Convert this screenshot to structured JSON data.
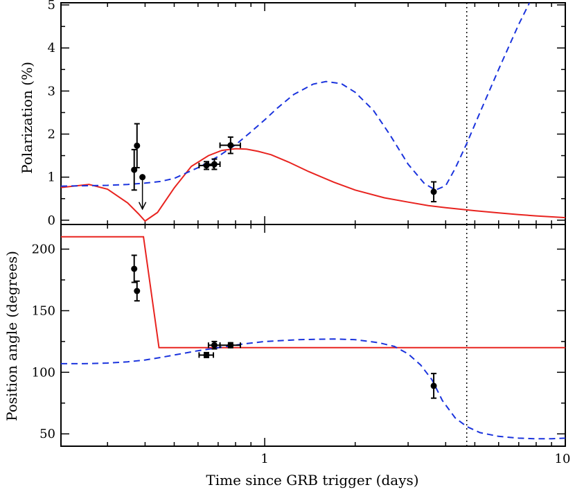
{
  "chart_data": [
    {
      "type": "line",
      "panel": "top",
      "ylabel": "Polarization (%)",
      "xscale": "log",
      "xlim": [
        0.21,
        10
      ],
      "ylim": [
        -0.1,
        5.05
      ],
      "xticks": [
        1,
        10
      ],
      "xtick_labels": [
        "1",
        "10"
      ],
      "yticks": [
        0,
        1,
        2,
        3,
        4,
        5
      ],
      "ytick_labels": [
        "0",
        "1",
        "2",
        "3",
        "4",
        "5"
      ],
      "vline_x": 4.7,
      "series": [
        {
          "style": "solid",
          "color": "#e8231f",
          "x": [
            0.21,
            0.26,
            0.3,
            0.35,
            0.38,
            0.4,
            0.44,
            0.5,
            0.57,
            0.65,
            0.72,
            0.8,
            0.87,
            0.95,
            1.05,
            1.2,
            1.4,
            1.7,
            2.0,
            2.5,
            3.0,
            3.5,
            4.0,
            5.0,
            6.0,
            7.0,
            8.0,
            10.0
          ],
          "y": [
            0.76,
            0.83,
            0.72,
            0.4,
            0.15,
            -0.02,
            0.18,
            0.75,
            1.25,
            1.5,
            1.62,
            1.66,
            1.65,
            1.6,
            1.52,
            1.35,
            1.13,
            0.88,
            0.7,
            0.52,
            0.42,
            0.34,
            0.29,
            0.22,
            0.17,
            0.13,
            0.1,
            0.06
          ]
        },
        {
          "style": "dashed",
          "color": "#1a33dd",
          "x": [
            0.21,
            0.25,
            0.3,
            0.35,
            0.4,
            0.45,
            0.5,
            0.6,
            0.7,
            0.8,
            0.9,
            1.0,
            1.1,
            1.25,
            1.45,
            1.6,
            1.8,
            2.0,
            2.3,
            2.6,
            3.0,
            3.4,
            3.7,
            4.0,
            4.3,
            4.7,
            5.2,
            6.0,
            7.0,
            7.6
          ],
          "y": [
            0.79,
            0.8,
            0.81,
            0.83,
            0.86,
            0.9,
            0.97,
            1.22,
            1.48,
            1.75,
            2.05,
            2.33,
            2.6,
            2.92,
            3.16,
            3.22,
            3.17,
            2.97,
            2.55,
            2.0,
            1.3,
            0.85,
            0.7,
            0.8,
            1.2,
            1.78,
            2.5,
            3.5,
            4.55,
            5.05
          ]
        }
      ],
      "points": [
        {
          "x": 0.368,
          "y": 1.17,
          "yerr": 0.47
        },
        {
          "x": 0.376,
          "y": 1.73,
          "yerr": 0.51
        },
        {
          "x": 0.392,
          "y": 1.0,
          "upper_limit": true
        },
        {
          "x": 0.64,
          "y": 1.27,
          "yerr": 0.09,
          "xerr": 0.035
        },
        {
          "x": 0.68,
          "y": 1.3,
          "yerr": 0.12,
          "xerr": 0.03
        },
        {
          "x": 0.77,
          "y": 1.74,
          "yerr": 0.19,
          "xerr": 0.06
        },
        {
          "x": 3.65,
          "y": 0.66,
          "yerr": 0.23
        }
      ]
    },
    {
      "type": "line",
      "panel": "bottom",
      "xlabel": "Time since GRB trigger (days)",
      "ylabel": "Position angle (degrees)",
      "xscale": "log",
      "xlim": [
        0.21,
        10
      ],
      "ylim": [
        40,
        220
      ],
      "xticks": [
        1,
        10
      ],
      "xtick_labels": [
        "1",
        "10"
      ],
      "yticks": [
        50,
        100,
        150,
        200
      ],
      "ytick_labels": [
        "50",
        "100",
        "150",
        "200"
      ],
      "vline_x": 4.7,
      "series": [
        {
          "style": "solid",
          "color": "#e8231f",
          "x": [
            0.21,
            0.395,
            0.445,
            10.0
          ],
          "y": [
            210,
            210,
            120,
            120
          ]
        },
        {
          "style": "dashed",
          "color": "#1a33dd",
          "x": [
            0.21,
            0.25,
            0.3,
            0.35,
            0.4,
            0.45,
            0.5,
            0.6,
            0.7,
            0.85,
            1.0,
            1.3,
            1.7,
            2.0,
            2.4,
            2.7,
            3.0,
            3.3,
            3.6,
            3.9,
            4.3,
            4.7,
            5.2,
            6.0,
            7.0,
            8.0,
            9.0,
            10.0
          ],
          "y": [
            107,
            107,
            107.5,
            108.5,
            110,
            112,
            114,
            117.5,
            120,
            123,
            125,
            126.5,
            127,
            126.5,
            124,
            121,
            115,
            106,
            94,
            77,
            63,
            56,
            51,
            48,
            46.5,
            46,
            46,
            46.5
          ]
        }
      ],
      "points": [
        {
          "x": 0.368,
          "y": 184,
          "yerr": 11
        },
        {
          "x": 0.376,
          "y": 166,
          "yerr": 8
        },
        {
          "x": 0.64,
          "y": 114,
          "yerr": 2,
          "xerr": 0.035
        },
        {
          "x": 0.68,
          "y": 122,
          "yerr": 3,
          "xerr": 0.03
        },
        {
          "x": 0.77,
          "y": 122,
          "yerr": 2,
          "xerr": 0.06
        },
        {
          "x": 3.65,
          "y": 89,
          "yerr": 10
        }
      ]
    }
  ]
}
